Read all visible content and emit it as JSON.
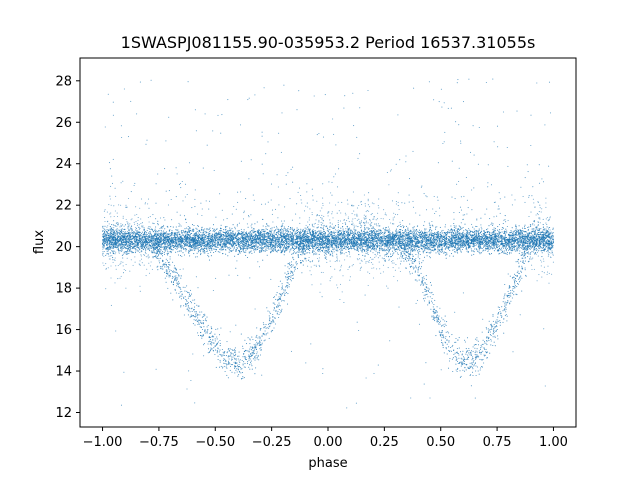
{
  "chart_data": {
    "type": "scatter",
    "title": "1SWASPJ081155.90-035953.2 Period 16537.31055s",
    "xlabel": "phase",
    "ylabel": "flux",
    "xlim": [
      -1.1,
      1.1
    ],
    "ylim": [
      11.3,
      29.1
    ],
    "x_ticks": [
      -1.0,
      -0.75,
      -0.5,
      -0.25,
      0.0,
      0.25,
      0.5,
      0.75,
      1.0
    ],
    "x_tick_labels": [
      "−1.00",
      "−0.75",
      "−0.50",
      "−0.25",
      "0.00",
      "0.25",
      "0.50",
      "0.75",
      "1.00"
    ],
    "y_ticks": [
      12,
      14,
      16,
      18,
      20,
      22,
      24,
      26,
      28
    ],
    "y_tick_labels": [
      "12",
      "14",
      "16",
      "18",
      "20",
      "22",
      "24",
      "26",
      "28"
    ],
    "grid": false,
    "legend": "none",
    "marker_color": "#1f77b4",
    "series": [
      {
        "x": [
          -1.0,
          -0.9,
          -0.8,
          -0.7,
          -0.6,
          -0.55,
          -0.5,
          -0.45,
          -0.4,
          -0.35,
          -0.3,
          -0.25,
          -0.2,
          -0.15,
          -0.1,
          0.0,
          0.1,
          0.2,
          0.3,
          0.4,
          0.45,
          0.5,
          0.55,
          0.6,
          0.65,
          0.7,
          0.75,
          0.8,
          0.85,
          0.9,
          1.0
        ],
        "y": [
          20.3,
          20.3,
          20.3,
          18.9,
          17.0,
          16.0,
          15.2,
          14.6,
          14.4,
          14.6,
          15.3,
          16.4,
          17.8,
          19.0,
          20.0,
          20.3,
          20.3,
          20.3,
          20.3,
          18.9,
          17.5,
          16.0,
          15.0,
          14.5,
          14.5,
          15.2,
          16.3,
          17.6,
          18.8,
          20.0,
          20.3
        ]
      }
    ]
  }
}
